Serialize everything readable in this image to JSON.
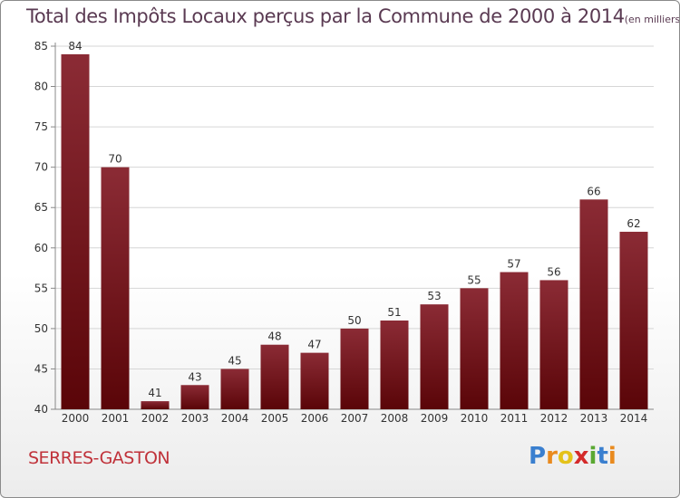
{
  "chart_data": {
    "type": "bar",
    "title": "Total des Impôts Locaux perçus par la Commune de 2000 à 2014",
    "title_unit": "(en milliers d'€)",
    "categories": [
      "2000",
      "2001",
      "2002",
      "2003",
      "2004",
      "2005",
      "2006",
      "2007",
      "2008",
      "2009",
      "2010",
      "2011",
      "2012",
      "2013",
      "2014"
    ],
    "values": [
      84,
      70,
      41,
      43,
      45,
      48,
      47,
      50,
      51,
      53,
      55,
      57,
      56,
      66,
      62
    ],
    "xlabel": "",
    "ylabel": "",
    "ylim": [
      40,
      85
    ],
    "yticks": [
      40,
      45,
      50,
      55,
      60,
      65,
      70,
      75,
      80,
      85
    ],
    "grid": true,
    "bar_color_top": "#8b2b35",
    "bar_color_bottom": "#5a0508"
  },
  "commune_name": "SERRES-GASTON",
  "logo": {
    "letters": [
      "P",
      "r",
      "o",
      "x",
      "i",
      "t",
      "i"
    ],
    "colors": [
      "#3a7fcf",
      "#e98a1e",
      "#e4c21a",
      "#d42a2a",
      "#5aa832",
      "#3a7fcf",
      "#e98a1e"
    ]
  }
}
